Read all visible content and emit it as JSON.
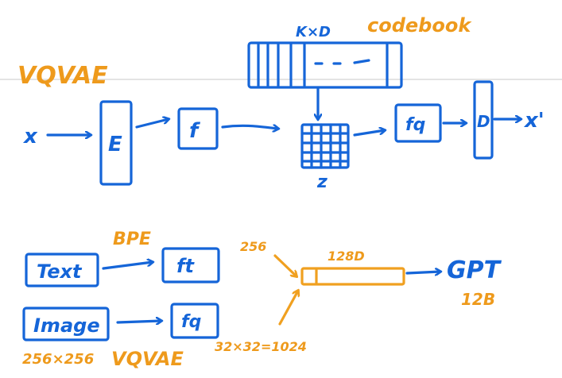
{
  "colors": {
    "ink_blue": "#1565d8",
    "ink_orange": "#ee9a1c",
    "background": "#ffffff",
    "ruler_line": "#c8c8c8"
  },
  "labels": {
    "title": "VQVAE",
    "codebook_dims": "K×D",
    "codebook": "codebook",
    "input_x": "x",
    "encoder": "E",
    "feature_f": "f",
    "latent_z": "z",
    "quantized_fq": "fq",
    "decoder": "D",
    "output": "x'",
    "text_box": "Text",
    "bpe": "BPE",
    "text_feature": "ft",
    "image_box": "Image",
    "image_feature": "fq",
    "image_size": "256×256",
    "image_tokenizer": "VQVAE",
    "text_tokens": "256",
    "embed_dim": "128D",
    "image_tokens": "32×32=1024",
    "gpt": "GPT",
    "gpt_size": "12B"
  }
}
